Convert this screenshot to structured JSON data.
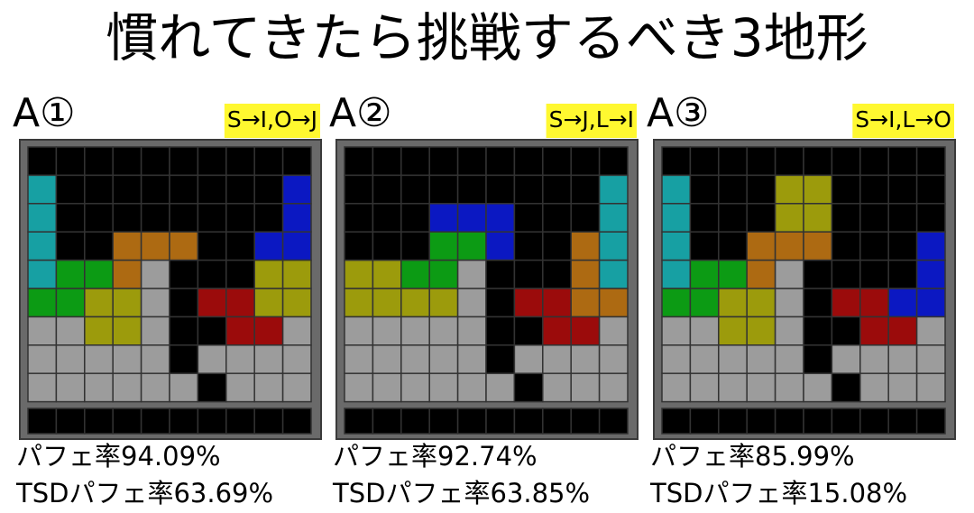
{
  "title": "慣れてきたら挑戦するべき3地形",
  "panels": [
    {
      "label": "A①",
      "sequence": "S→I,O→J",
      "rows": [
        "..........",
        "C........B",
        "C........B",
        "C..OOO..BB",
        "CGGOS...YY",
        "GGYYS.RRYY",
        "SSYYS..RRS",
        "SSSSS.SSSS",
        "SSSSSS.SSS"
      ],
      "stats": [
        "パフェ率94.09%",
        "TSDパフェ率63.69%"
      ]
    },
    {
      "label": "A②",
      "sequence": "S→J,L→I",
      "rows": [
        "..........",
        ".........C",
        "...BBB...C",
        "...GGB..OC",
        "YYGGS...OC",
        "YYYYS.RROO",
        "SSSSS..RRS",
        "SSSSS.SSSS",
        "SSSSSS.SSS"
      ],
      "stats": [
        "パフェ率92.74%",
        "TSDパフェ率63.85%"
      ]
    },
    {
      "label": "A③",
      "sequence": "S→I,L→O",
      "rows": [
        "..........",
        "C...YY....",
        "C...YY....",
        "C..OOO...B",
        "CGGOS....B",
        "GGYYS.RRBB",
        "SSYYS..RRS",
        "SSSSS.SSSS",
        "SSSSSS.SSS"
      ],
      "stats": [
        "パフェ率85.99%",
        "TSDパフェ率15.08%"
      ]
    }
  ]
}
